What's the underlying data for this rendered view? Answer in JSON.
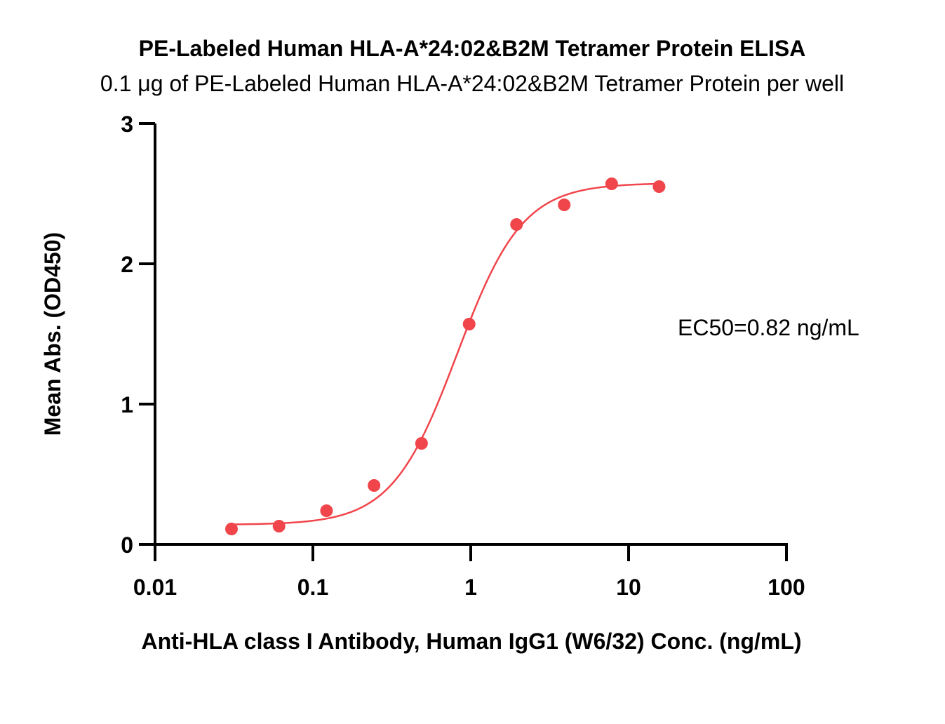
{
  "chart_data": {
    "type": "scatter",
    "title": "PE-Labeled Human HLA-A*24:02&B2M Tetramer Protein ELISA",
    "subtitle": "0.1 μg of PE-Labeled Human HLA-A*24:02&B2M Tetramer Protein per well",
    "xlabel": "Anti-HLA class I Antibody, Human IgG1 (W6/32) Conc. (ng/mL)",
    "ylabel": "Mean Abs. (OD450)",
    "xscale": "log",
    "xlim": [
      0.01,
      100
    ],
    "ylim": [
      0,
      3
    ],
    "xticks": [
      {
        "value": 0.01,
        "label": "0.01"
      },
      {
        "value": 0.1,
        "label": "0.1"
      },
      {
        "value": 1,
        "label": "1"
      },
      {
        "value": 10,
        "label": "10"
      },
      {
        "value": 100,
        "label": "100"
      }
    ],
    "yticks": [
      {
        "value": 0,
        "label": "0"
      },
      {
        "value": 1,
        "label": "1"
      },
      {
        "value": 2,
        "label": "2"
      },
      {
        "value": 3,
        "label": "3"
      }
    ],
    "grid": false,
    "annotation": "EC50=0.82 ng/mL",
    "color": "#f0454b",
    "series": [
      {
        "x": [
          0.0305,
          0.061,
          0.122,
          0.244,
          0.488,
          0.977,
          1.95,
          3.91,
          7.81,
          15.6
        ],
        "y": [
          0.11,
          0.13,
          0.24,
          0.42,
          0.72,
          1.57,
          2.28,
          2.42,
          2.57,
          2.55
        ]
      }
    ]
  }
}
